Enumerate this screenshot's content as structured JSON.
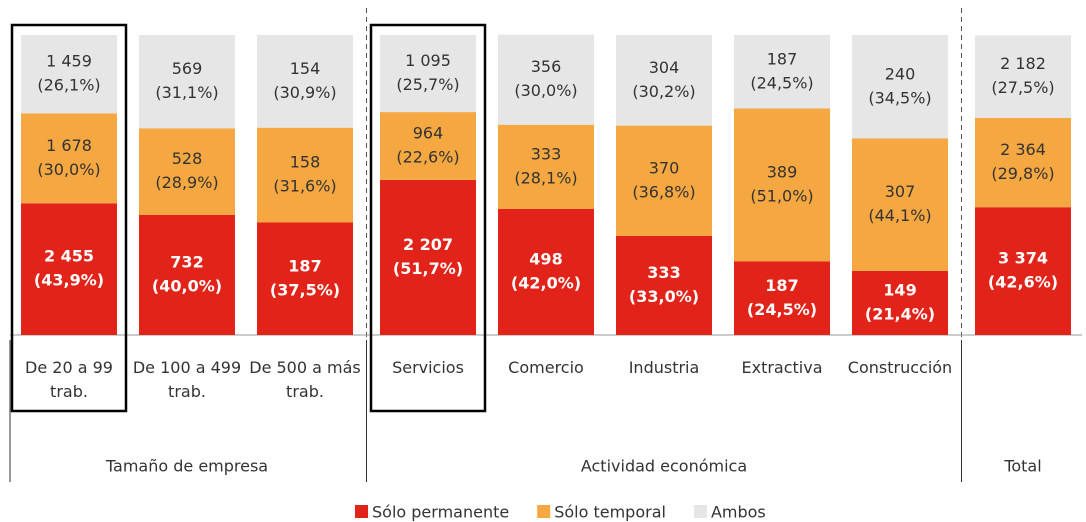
{
  "chart_data": {
    "type": "stacked_bar_100",
    "groups": [
      {
        "label": "Tamaño de empresa",
        "categories": [
          "De 20 a 99 trab.",
          "De 100 a 499 trab.",
          "De 500 a más trab."
        ]
      },
      {
        "label": "Actividad económica",
        "categories": [
          "Servicios",
          "Comercio",
          "Industria",
          "Extractiva",
          "Construcción"
        ]
      },
      {
        "label": "Total",
        "categories": [
          null
        ]
      }
    ],
    "highlight": [
      0,
      3
    ],
    "ylim": [
      0,
      100
    ],
    "series": [
      {
        "name": "Sólo permanente",
        "color": "#e2231a",
        "label_color": "#ffffff",
        "values": [
          43.9,
          40.0,
          37.5,
          51.7,
          42.0,
          33.0,
          24.5,
          21.4,
          42.6
        ],
        "value_labels": [
          [
            "2 455",
            "(43,9%)"
          ],
          [
            "732",
            "(40,0%)"
          ],
          [
            "187",
            "(37,5%)"
          ],
          [
            "2 207",
            "(51,7%)"
          ],
          [
            "498",
            "(42,0%)"
          ],
          [
            "333",
            "(33,0%)"
          ],
          [
            "187",
            "(24,5%)"
          ],
          [
            "149",
            "(21,4%)"
          ],
          [
            "3 374",
            "(42,6%)"
          ]
        ]
      },
      {
        "name": "Sólo temporal",
        "color": "#f5a742",
        "label_color": "#333333",
        "values": [
          30.0,
          28.9,
          31.6,
          22.6,
          28.1,
          36.8,
          51.0,
          44.1,
          29.8
        ],
        "value_labels": [
          [
            "1 678",
            "(30,0%)"
          ],
          [
            "528",
            "(28,9%)"
          ],
          [
            "158",
            "(31,6%)"
          ],
          [
            "964",
            "(22,6%)"
          ],
          [
            "333",
            "(28,1%)"
          ],
          [
            "370",
            "(36,8%)"
          ],
          [
            "389",
            "(51,0%)"
          ],
          [
            "307",
            "(44,1%)"
          ],
          [
            "2 364",
            "(29,8%)"
          ]
        ]
      },
      {
        "name": "Ambos",
        "color": "#e6e6e6",
        "label_color": "#333333",
        "values": [
          26.1,
          31.1,
          30.9,
          25.7,
          30.0,
          30.2,
          24.5,
          34.5,
          27.5
        ],
        "value_labels": [
          [
            "1 459",
            "(26,1%)"
          ],
          [
            "569",
            "(31,1%)"
          ],
          [
            "154",
            "(30,9%)"
          ],
          [
            "1 095",
            "(25,7%)"
          ],
          [
            "356",
            "(30,0%)"
          ],
          [
            "304",
            "(30,2%)"
          ],
          [
            "187",
            "(24,5%)"
          ],
          [
            "240",
            "(34,5%)"
          ],
          [
            "2 182",
            "(27,5%)"
          ]
        ]
      }
    ]
  }
}
